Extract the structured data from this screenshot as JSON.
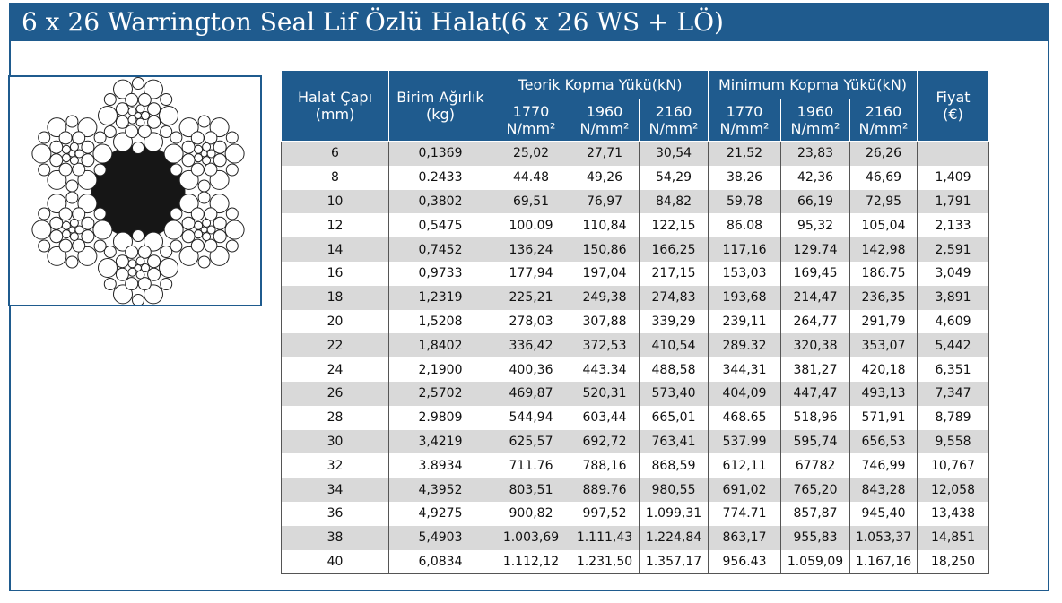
{
  "title": "6 x 26 Warrington Seal Lif Özlü Halat(6 x 26 WS + LÖ)",
  "colors": {
    "brand": "#1f5b8e",
    "row_shade": "#d9d9d9"
  },
  "image": {
    "icon": "wire-rope-cross-section-icon"
  },
  "table": {
    "header": {
      "diameter": "Halat Çapı",
      "diameter_unit": "(mm)",
      "weight": "Birim Ağırlık",
      "weight_unit": "(kg)",
      "theoretical": "Teorik Kopma Yükü(kN)",
      "minimum": "Minimum Kopma Yükü(kN)",
      "price": "Fiyat",
      "price_unit": "(€)",
      "grades": [
        "1770",
        "1960",
        "2160",
        "1770",
        "1960",
        "2160"
      ],
      "grade_unit": "N/mm²"
    },
    "rows": [
      [
        "6",
        "0,1369",
        "25,02",
        "27,71",
        "30,54",
        "21,52",
        "23,83",
        "26,26",
        ""
      ],
      [
        "8",
        "0.2433",
        "44.48",
        "49,26",
        "54,29",
        "38,26",
        "42,36",
        "46,69",
        "1,409"
      ],
      [
        "10",
        "0,3802",
        "69,51",
        "76,97",
        "84,82",
        "59,78",
        "66,19",
        "72,95",
        "1,791"
      ],
      [
        "12",
        "0,5475",
        "100.09",
        "110,84",
        "122,15",
        "86.08",
        "95,32",
        "105,04",
        "2,133"
      ],
      [
        "14",
        "0,7452",
        "136,24",
        "150,86",
        "166,25",
        "117,16",
        "129.74",
        "142,98",
        "2,591"
      ],
      [
        "16",
        "0,9733",
        "177,94",
        "197,04",
        "217,15",
        "153,03",
        "169,45",
        "186.75",
        "3,049"
      ],
      [
        "18",
        "1,2319",
        "225,21",
        "249,38",
        "274,83",
        "193,68",
        "214,47",
        "236,35",
        "3,891"
      ],
      [
        "20",
        "1,5208",
        "278,03",
        "307,88",
        "339,29",
        "239,11",
        "264,77",
        "291,79",
        "4,609"
      ],
      [
        "22",
        "1,8402",
        "336,42",
        "372,53",
        "410,54",
        "289.32",
        "320,38",
        "353,07",
        "5,442"
      ],
      [
        "24",
        "2,1900",
        "400,36",
        "443.34",
        "488,58",
        "344,31",
        "381,27",
        "420,18",
        "6,351"
      ],
      [
        "26",
        "2,5702",
        "469,87",
        "520,31",
        "573,40",
        "404,09",
        "447,47",
        "493,13",
        "7,347"
      ],
      [
        "28",
        "2.9809",
        "544,94",
        "603,44",
        "665,01",
        "468.65",
        "518,96",
        "571,91",
        "8,789"
      ],
      [
        "30",
        "3,4219",
        "625,57",
        "692,72",
        "763,41",
        "537.99",
        "595,74",
        "656,53",
        "9,558"
      ],
      [
        "32",
        "3.8934",
        "711.76",
        "788,16",
        "868,59",
        "612,11",
        "67782",
        "746,99",
        "10,767"
      ],
      [
        "34",
        "4,3952",
        "803,51",
        "889.76",
        "980,55",
        "691,02",
        "765,20",
        "843,28",
        "12,058"
      ],
      [
        "36",
        "4,9275",
        "900,82",
        "997,52",
        "1.099,31",
        "774.71",
        "857,87",
        "945,40",
        "13,438"
      ],
      [
        "38",
        "5,4903",
        "1.003,69",
        "1.111,43",
        "1.224,84",
        "863,17",
        "955,83",
        "1.053,37",
        "14,851"
      ],
      [
        "40",
        "6,0834",
        "1.112,12",
        "1.231,50",
        "1.357,17",
        "956.43",
        "1.059,09",
        "1.167,16",
        "18,250"
      ]
    ]
  }
}
